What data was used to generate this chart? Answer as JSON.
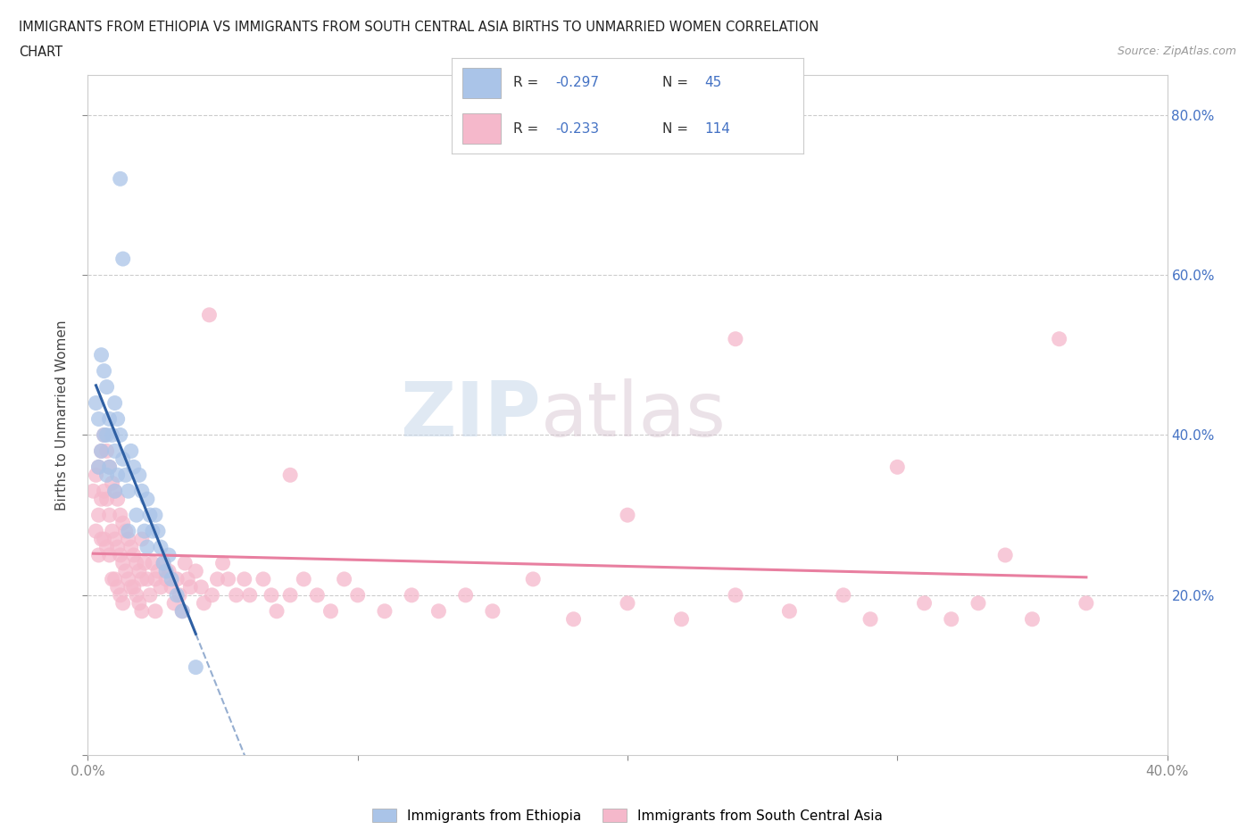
{
  "title_line1": "IMMIGRANTS FROM ETHIOPIA VS IMMIGRANTS FROM SOUTH CENTRAL ASIA BIRTHS TO UNMARRIED WOMEN CORRELATION",
  "title_line2": "CHART",
  "source": "Source: ZipAtlas.com",
  "ylabel": "Births to Unmarried Women",
  "xlim": [
    0.0,
    0.4
  ],
  "ylim": [
    0.0,
    0.85
  ],
  "ethiopia_color": "#aac4e8",
  "sca_color": "#f5b8cb",
  "ethiopia_line_color": "#2e5fa3",
  "sca_line_color": "#e87fa0",
  "background_color": "#ffffff",
  "grid_color": "#cccccc",
  "watermark_zip": "ZIP",
  "watermark_atlas": "atlas",
  "legend_R_col": "#4472c4",
  "legend_N_col": "#4472c4",
  "ethiopia_label": "Immigrants from Ethiopia",
  "sca_label": "Immigrants from South Central Asia",
  "ethiopia_scatter": [
    [
      0.003,
      0.44
    ],
    [
      0.004,
      0.42
    ],
    [
      0.004,
      0.36
    ],
    [
      0.005,
      0.5
    ],
    [
      0.005,
      0.38
    ],
    [
      0.006,
      0.48
    ],
    [
      0.006,
      0.4
    ],
    [
      0.007,
      0.46
    ],
    [
      0.007,
      0.4
    ],
    [
      0.007,
      0.35
    ],
    [
      0.008,
      0.42
    ],
    [
      0.008,
      0.36
    ],
    [
      0.009,
      0.4
    ],
    [
      0.01,
      0.44
    ],
    [
      0.01,
      0.38
    ],
    [
      0.01,
      0.33
    ],
    [
      0.011,
      0.42
    ],
    [
      0.011,
      0.35
    ],
    [
      0.012,
      0.4
    ],
    [
      0.013,
      0.62
    ],
    [
      0.013,
      0.37
    ],
    [
      0.014,
      0.35
    ],
    [
      0.015,
      0.33
    ],
    [
      0.015,
      0.28
    ],
    [
      0.016,
      0.38
    ],
    [
      0.017,
      0.36
    ],
    [
      0.018,
      0.3
    ],
    [
      0.019,
      0.35
    ],
    [
      0.02,
      0.33
    ],
    [
      0.021,
      0.28
    ],
    [
      0.022,
      0.32
    ],
    [
      0.022,
      0.26
    ],
    [
      0.023,
      0.3
    ],
    [
      0.024,
      0.28
    ],
    [
      0.025,
      0.3
    ],
    [
      0.026,
      0.28
    ],
    [
      0.027,
      0.26
    ],
    [
      0.028,
      0.24
    ],
    [
      0.029,
      0.23
    ],
    [
      0.03,
      0.25
    ],
    [
      0.031,
      0.22
    ],
    [
      0.033,
      0.2
    ],
    [
      0.035,
      0.18
    ],
    [
      0.04,
      0.11
    ],
    [
      0.012,
      0.72
    ]
  ],
  "sca_scatter": [
    [
      0.002,
      0.33
    ],
    [
      0.003,
      0.35
    ],
    [
      0.003,
      0.28
    ],
    [
      0.004,
      0.36
    ],
    [
      0.004,
      0.3
    ],
    [
      0.004,
      0.25
    ],
    [
      0.005,
      0.38
    ],
    [
      0.005,
      0.32
    ],
    [
      0.005,
      0.27
    ],
    [
      0.006,
      0.4
    ],
    [
      0.006,
      0.33
    ],
    [
      0.006,
      0.27
    ],
    [
      0.007,
      0.38
    ],
    [
      0.007,
      0.32
    ],
    [
      0.007,
      0.26
    ],
    [
      0.008,
      0.36
    ],
    [
      0.008,
      0.3
    ],
    [
      0.008,
      0.25
    ],
    [
      0.009,
      0.34
    ],
    [
      0.009,
      0.28
    ],
    [
      0.009,
      0.22
    ],
    [
      0.01,
      0.33
    ],
    [
      0.01,
      0.27
    ],
    [
      0.01,
      0.22
    ],
    [
      0.011,
      0.32
    ],
    [
      0.011,
      0.26
    ],
    [
      0.011,
      0.21
    ],
    [
      0.012,
      0.3
    ],
    [
      0.012,
      0.25
    ],
    [
      0.012,
      0.2
    ],
    [
      0.013,
      0.29
    ],
    [
      0.013,
      0.24
    ],
    [
      0.013,
      0.19
    ],
    [
      0.014,
      0.28
    ],
    [
      0.014,
      0.23
    ],
    [
      0.015,
      0.27
    ],
    [
      0.015,
      0.22
    ],
    [
      0.016,
      0.26
    ],
    [
      0.016,
      0.21
    ],
    [
      0.017,
      0.25
    ],
    [
      0.017,
      0.21
    ],
    [
      0.018,
      0.24
    ],
    [
      0.018,
      0.2
    ],
    [
      0.019,
      0.23
    ],
    [
      0.019,
      0.19
    ],
    [
      0.02,
      0.27
    ],
    [
      0.02,
      0.22
    ],
    [
      0.02,
      0.18
    ],
    [
      0.021,
      0.24
    ],
    [
      0.022,
      0.22
    ],
    [
      0.023,
      0.2
    ],
    [
      0.024,
      0.24
    ],
    [
      0.025,
      0.22
    ],
    [
      0.025,
      0.18
    ],
    [
      0.026,
      0.23
    ],
    [
      0.027,
      0.21
    ],
    [
      0.028,
      0.24
    ],
    [
      0.029,
      0.22
    ],
    [
      0.03,
      0.23
    ],
    [
      0.031,
      0.21
    ],
    [
      0.032,
      0.19
    ],
    [
      0.033,
      0.22
    ],
    [
      0.034,
      0.2
    ],
    [
      0.035,
      0.18
    ],
    [
      0.036,
      0.24
    ],
    [
      0.037,
      0.22
    ],
    [
      0.038,
      0.21
    ],
    [
      0.04,
      0.23
    ],
    [
      0.042,
      0.21
    ],
    [
      0.043,
      0.19
    ],
    [
      0.045,
      0.55
    ],
    [
      0.046,
      0.2
    ],
    [
      0.048,
      0.22
    ],
    [
      0.05,
      0.24
    ],
    [
      0.052,
      0.22
    ],
    [
      0.055,
      0.2
    ],
    [
      0.058,
      0.22
    ],
    [
      0.06,
      0.2
    ],
    [
      0.065,
      0.22
    ],
    [
      0.068,
      0.2
    ],
    [
      0.07,
      0.18
    ],
    [
      0.075,
      0.2
    ],
    [
      0.08,
      0.22
    ],
    [
      0.085,
      0.2
    ],
    [
      0.09,
      0.18
    ],
    [
      0.095,
      0.22
    ],
    [
      0.1,
      0.2
    ],
    [
      0.11,
      0.18
    ],
    [
      0.12,
      0.2
    ],
    [
      0.13,
      0.18
    ],
    [
      0.14,
      0.2
    ],
    [
      0.15,
      0.18
    ],
    [
      0.165,
      0.22
    ],
    [
      0.18,
      0.17
    ],
    [
      0.2,
      0.19
    ],
    [
      0.22,
      0.17
    ],
    [
      0.24,
      0.2
    ],
    [
      0.26,
      0.18
    ],
    [
      0.28,
      0.2
    ],
    [
      0.29,
      0.17
    ],
    [
      0.3,
      0.36
    ],
    [
      0.31,
      0.19
    ],
    [
      0.32,
      0.17
    ],
    [
      0.33,
      0.19
    ],
    [
      0.34,
      0.25
    ],
    [
      0.35,
      0.17
    ],
    [
      0.36,
      0.52
    ],
    [
      0.37,
      0.19
    ],
    [
      0.075,
      0.35
    ],
    [
      0.24,
      0.52
    ],
    [
      0.2,
      0.3
    ]
  ]
}
